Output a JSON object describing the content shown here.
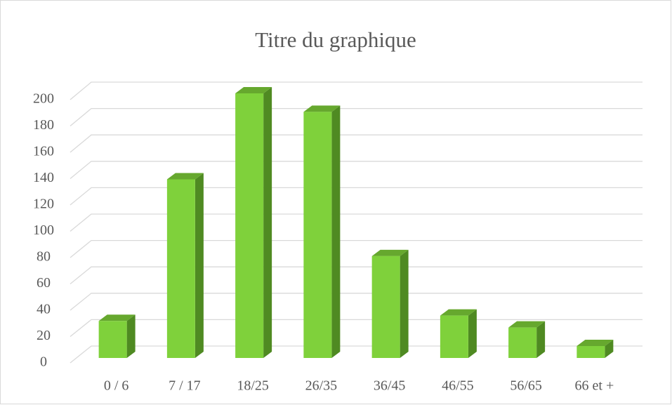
{
  "chart_data": {
    "type": "bar3d",
    "title": "Titre du graphique",
    "categories": [
      "0 / 6",
      "7 / 17",
      "18/25",
      "26/35",
      "36/45",
      "46/55",
      "56/65",
      "66 et +"
    ],
    "values": [
      28,
      135,
      200,
      186,
      77,
      32,
      23,
      9
    ],
    "color": "#7fd13b",
    "ylim": [
      0,
      200
    ],
    "yticks": [
      0,
      20,
      40,
      60,
      80,
      100,
      120,
      140,
      160,
      180,
      200
    ],
    "grid": true
  }
}
